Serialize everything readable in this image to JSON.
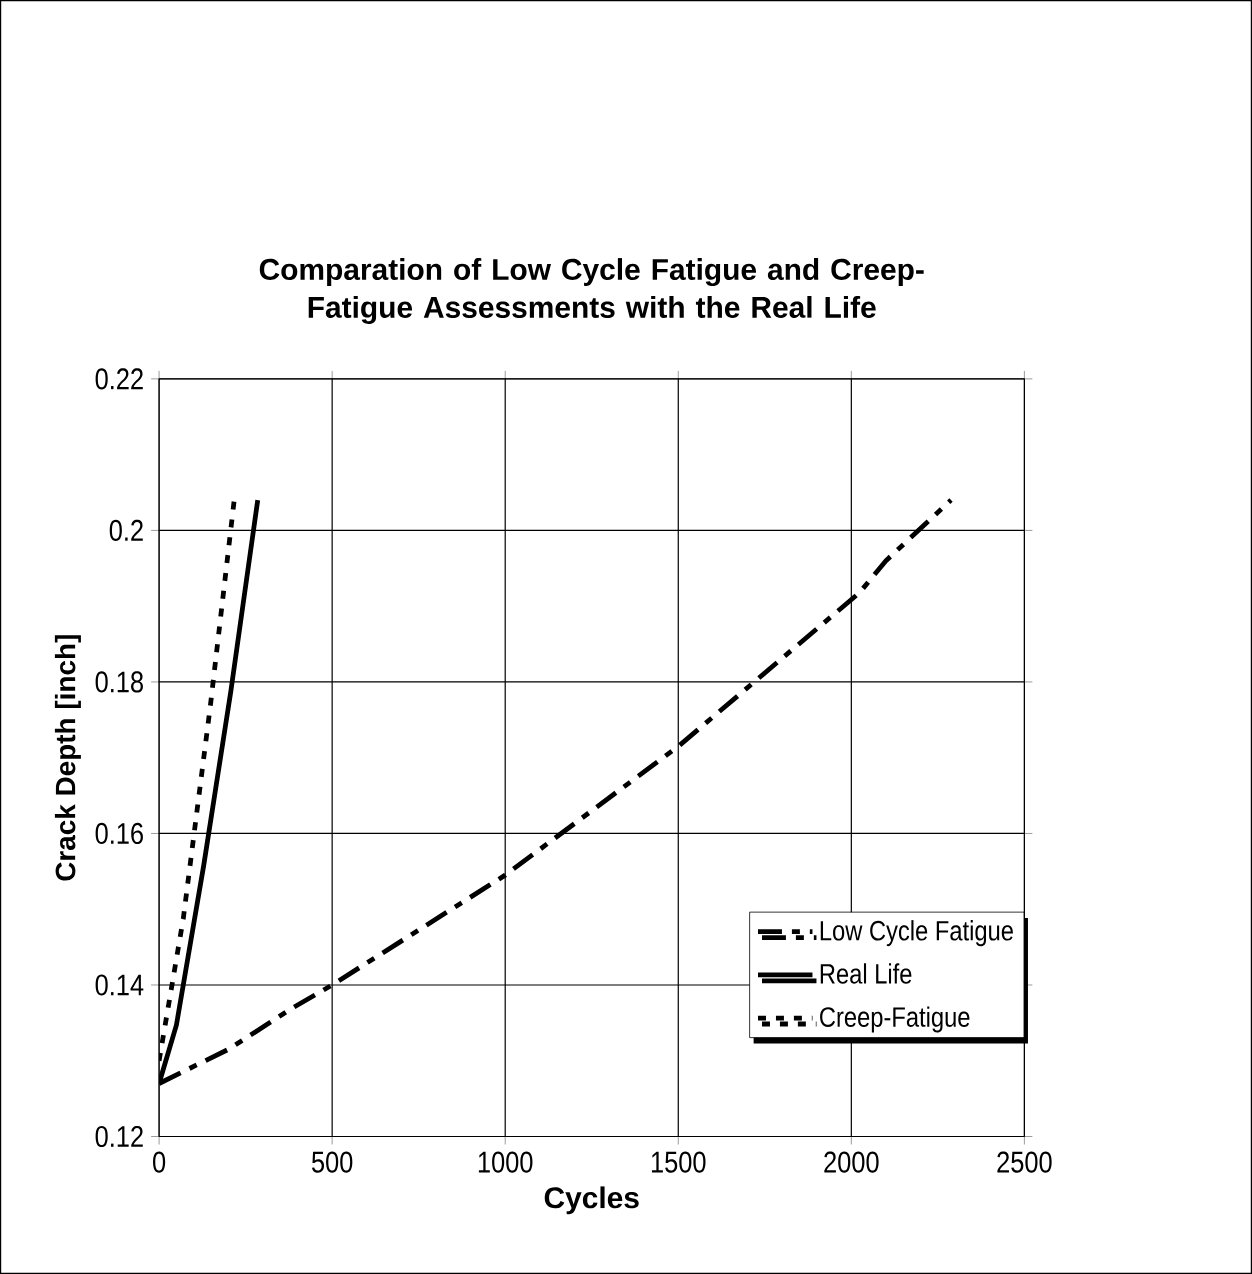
{
  "chart_data": {
    "type": "line",
    "title": "Comparation of Low Cycle Fatigue and Creep-Fatigue Assessments with the Real Life",
    "xlabel": "Cycles",
    "ylabel": "Crack Depth [inch]",
    "xlim": [
      0,
      2500
    ],
    "xticks": [
      0,
      500,
      1000,
      1500,
      2000,
      2500
    ],
    "ylim": [
      0.12,
      0.22
    ],
    "yticks": [
      0.12,
      0.14,
      0.16,
      0.18,
      0.2,
      0.22
    ],
    "grid": true,
    "legend": "bottom right",
    "marker": "none",
    "series": [
      {
        "name": "Low Cycle Fatigue",
        "color": "#000000",
        "line_style": "dashdot",
        "x": [
          0,
          200,
          383,
          500,
          1000,
          1500,
          2024,
          2100,
          2288
        ],
        "values": [
          0.127,
          0.1315,
          0.1369,
          0.14,
          0.1545,
          0.1715,
          0.1918,
          0.196,
          0.204
        ]
      },
      {
        "name": "Real Life",
        "color": "#000000",
        "line_style": "solid",
        "x": [
          0,
          50,
          129,
          207,
          285
        ],
        "values": [
          0.127,
          0.1347,
          0.1558,
          0.1787,
          0.204
        ]
      },
      {
        "name": "Creep-Fatigue",
        "color": "#000000",
        "line_style": "dotted",
        "x": [
          0,
          70,
          148,
          217
        ],
        "values": [
          0.13,
          0.1488,
          0.1768,
          0.204
        ]
      }
    ]
  }
}
